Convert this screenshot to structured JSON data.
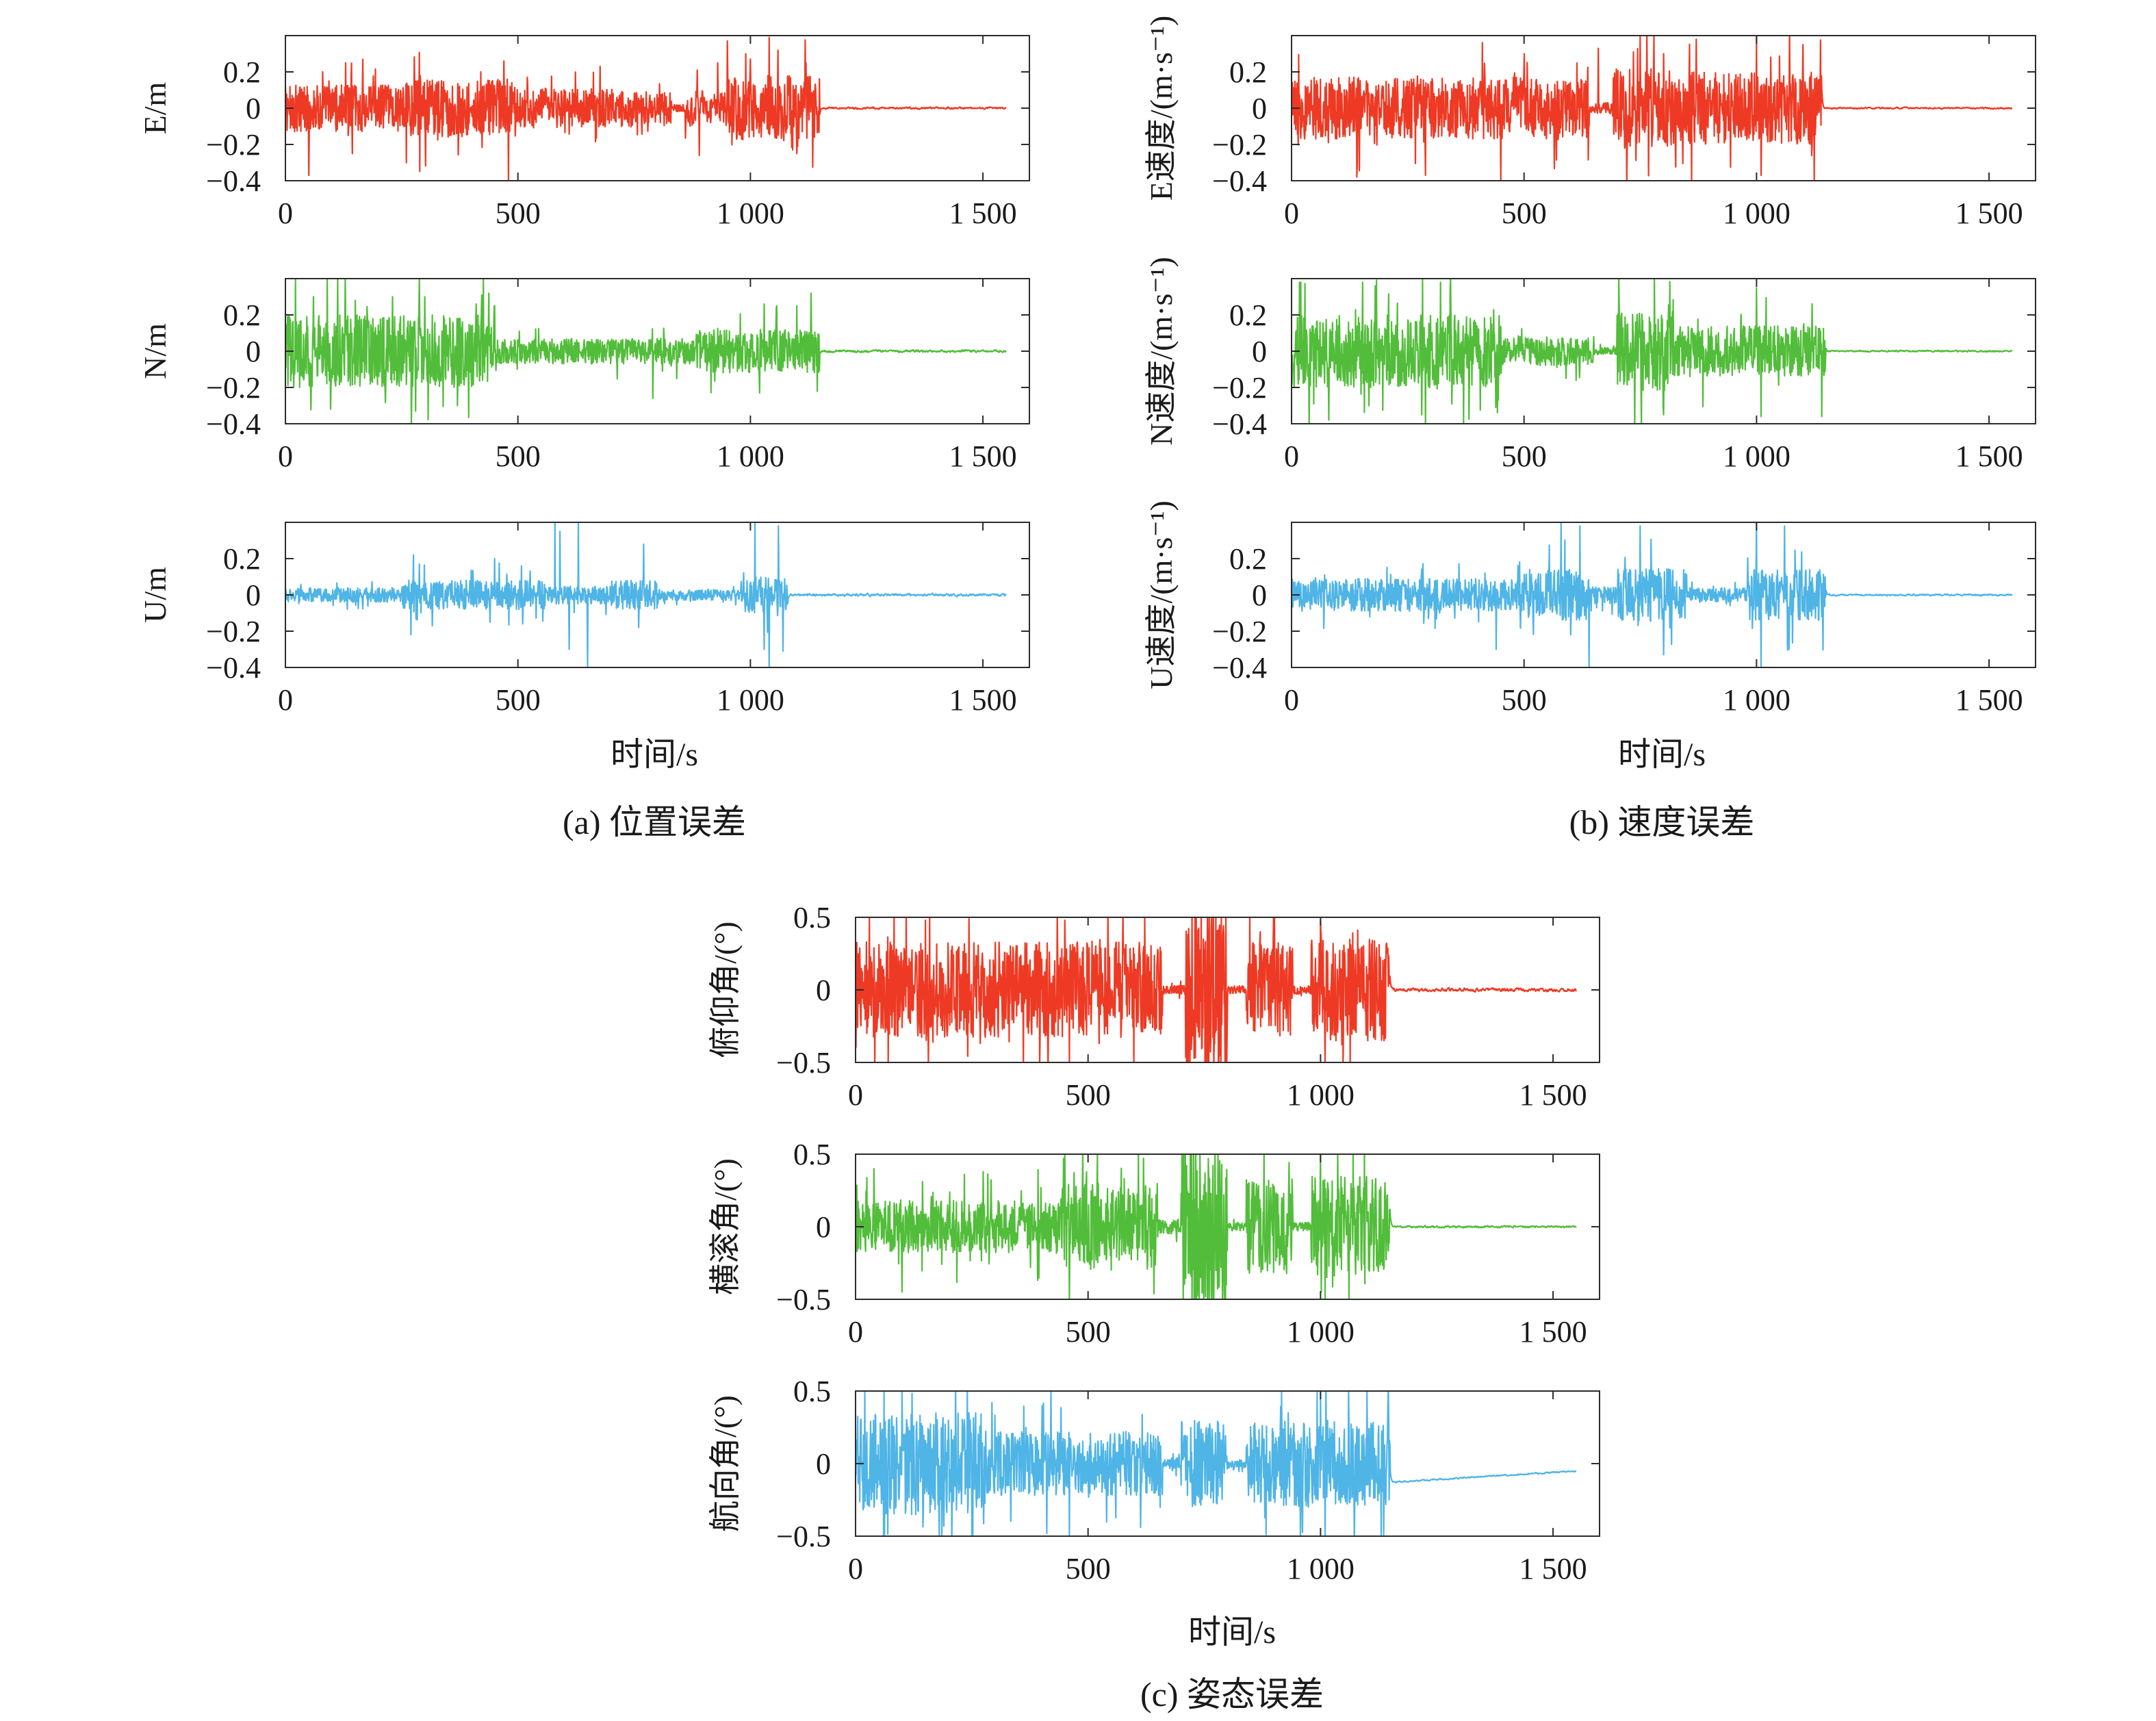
{
  "figure": {
    "colors": {
      "red": "#ee3a24",
      "green": "#52bd3a",
      "blue": "#4fb4e6",
      "axis": "#2b2b2b"
    },
    "captions": [
      "(a) 位置误差",
      "(b) 速度误差",
      "(c) 姿态误差"
    ],
    "xlabel": "时间/s"
  },
  "chart_data": [
    {
      "type": "line",
      "id": "pos-e",
      "ylabel": "E/m",
      "color": "red",
      "xlim": [
        0,
        1600
      ],
      "ylim": [
        -0.4,
        0.4
      ],
      "xticks": [
        0,
        500,
        1000,
        1500
      ],
      "xtick_labels": [
        "0",
        "500",
        "1 000",
        "1 500"
      ],
      "yticks": [
        0.2,
        0,
        -0.2,
        -0.4
      ],
      "ytick_labels": [
        "0.2",
        "0",
        "−0.2",
        "−0.4"
      ],
      "x_end": 1550,
      "segments": [
        [
          0,
          250,
          0.13
        ],
        [
          250,
          500,
          0.16
        ],
        [
          500,
          750,
          0.11
        ],
        [
          750,
          830,
          0.09
        ],
        [
          830,
          860,
          0.02
        ],
        [
          860,
          950,
          0.1
        ],
        [
          950,
          1150,
          0.18
        ],
        [
          1150,
          1550,
          0.005
        ]
      ],
      "spikes": [
        [
          50,
          -0.37
        ],
        [
          80,
          0.2
        ],
        [
          130,
          0.25
        ],
        [
          260,
          -0.3
        ],
        [
          290,
          0.18
        ],
        [
          420,
          0.2
        ],
        [
          470,
          0.26
        ],
        [
          480,
          -0.4
        ],
        [
          520,
          0.17
        ],
        [
          890,
          -0.26
        ],
        [
          930,
          0.25
        ],
        [
          990,
          0.3
        ],
        [
          1000,
          0.27
        ],
        [
          1040,
          0.39
        ],
        [
          1100,
          -0.25
        ],
        [
          1120,
          0.25
        ]
      ]
    },
    {
      "type": "line",
      "id": "pos-n",
      "ylabel": "N/m",
      "color": "green",
      "xlim": [
        0,
        1600
      ],
      "ylim": [
        -0.4,
        0.4
      ],
      "xticks": [
        0,
        500,
        1000,
        1500
      ],
      "xtick_labels": [
        "0",
        "500",
        "1 000",
        "1 500"
      ],
      "yticks": [
        0.2,
        0,
        -0.2,
        -0.4
      ],
      "ytick_labels": [
        "0.2",
        "0",
        "−0.2",
        "−0.4"
      ],
      "x_end": 1550,
      "segments": [
        [
          0,
          450,
          0.2
        ],
        [
          450,
          700,
          0.07
        ],
        [
          700,
          880,
          0.07
        ],
        [
          880,
          1150,
          0.12
        ],
        [
          1150,
          1550,
          0.006
        ]
      ],
      "spikes": [
        [
          60,
          0.3
        ],
        [
          150,
          0.28
        ],
        [
          230,
          0.3
        ],
        [
          280,
          -0.33
        ],
        [
          300,
          0.3
        ],
        [
          370,
          -0.3
        ],
        [
          410,
          0.26
        ],
        [
          450,
          0.25
        ],
        [
          790,
          -0.26
        ],
        [
          1020,
          -0.23
        ],
        [
          1030,
          0.26
        ],
        [
          1100,
          0.25
        ],
        [
          1130,
          0.32
        ]
      ]
    },
    {
      "type": "line",
      "id": "pos-u",
      "ylabel": "U/m",
      "color": "blue",
      "xlim": [
        0,
        1600
      ],
      "ylim": [
        -0.4,
        0.4
      ],
      "xticks": [
        0,
        500,
        1000,
        1500
      ],
      "xtick_labels": [
        "0",
        "500",
        "1 000",
        "1 500"
      ],
      "yticks": [
        0.2,
        0,
        -0.2,
        -0.4
      ],
      "ytick_labels": [
        "0.2",
        "0",
        "−0.2",
        "−0.4"
      ],
      "x_end": 1550,
      "segments": [
        [
          0,
          250,
          0.04
        ],
        [
          250,
          560,
          0.08
        ],
        [
          560,
          700,
          0.05
        ],
        [
          700,
          800,
          0.08
        ],
        [
          800,
          980,
          0.03
        ],
        [
          980,
          1080,
          0.1
        ],
        [
          1080,
          1550,
          0.006
        ]
      ],
      "spikes": [
        [
          270,
          -0.22
        ],
        [
          275,
          0.22
        ],
        [
          440,
          -0.15
        ],
        [
          450,
          0.2
        ],
        [
          510,
          -0.16
        ],
        [
          580,
          0.4
        ],
        [
          590,
          0.35
        ],
        [
          610,
          -0.3
        ],
        [
          630,
          0.4
        ],
        [
          650,
          -0.42
        ],
        [
          760,
          -0.18
        ],
        [
          770,
          0.28
        ],
        [
          1010,
          0.4
        ],
        [
          1030,
          -0.3
        ],
        [
          1040,
          -0.42
        ],
        [
          1060,
          0.38
        ],
        [
          1070,
          -0.31
        ]
      ]
    },
    {
      "type": "line",
      "id": "vel-e",
      "ylabel": "E速度/(m·s⁻¹)",
      "color": "red",
      "xlim": [
        0,
        1600
      ],
      "ylim": [
        -0.4,
        0.4
      ],
      "xticks": [
        0,
        500,
        1000,
        1500
      ],
      "xtick_labels": [
        "0",
        "500",
        "1 000",
        "1 500"
      ],
      "yticks": [
        0.2,
        0,
        -0.2,
        -0.4
      ],
      "ytick_labels": [
        "0.2",
        "0",
        "−0.2",
        "−0.4"
      ],
      "x_end": 1550,
      "segments": [
        [
          0,
          640,
          0.17
        ],
        [
          640,
          690,
          0.03
        ],
        [
          690,
          820,
          0.22
        ],
        [
          820,
          1140,
          0.2
        ],
        [
          1140,
          1550,
          0.004
        ]
      ],
      "spikes": [
        [
          140,
          -0.38
        ],
        [
          450,
          -0.42
        ],
        [
          500,
          0.3
        ],
        [
          660,
          0.33
        ],
        [
          750,
          0.4
        ],
        [
          800,
          0.3
        ],
        [
          860,
          -0.42
        ],
        [
          870,
          0.38
        ],
        [
          1000,
          0.4
        ],
        [
          1010,
          -0.37
        ],
        [
          1100,
          0.35
        ]
      ]
    },
    {
      "type": "line",
      "id": "vel-n",
      "ylabel": "N速度/(m·s⁻¹)",
      "color": "green",
      "xlim": [
        0,
        1600
      ],
      "ylim": [
        -0.4,
        0.4
      ],
      "xticks": [
        0,
        500,
        1000,
        1500
      ],
      "xtick_labels": [
        "0",
        "500",
        "1 000",
        "1 500"
      ],
      "yticks": [
        0.2,
        0,
        -0.2,
        -0.4
      ],
      "ytick_labels": [
        "0.2",
        "0",
        "−0.2",
        "−0.4"
      ],
      "x_end": 1550,
      "segments": [
        [
          0,
          450,
          0.2
        ],
        [
          450,
          650,
          0.08
        ],
        [
          650,
          700,
          0.02
        ],
        [
          700,
          820,
          0.22
        ],
        [
          820,
          1150,
          0.14
        ],
        [
          1150,
          1550,
          0.004
        ]
      ],
      "spikes": [
        [
          20,
          0.38
        ],
        [
          80,
          -0.38
        ],
        [
          180,
          0.36
        ],
        [
          280,
          -0.35
        ],
        [
          320,
          0.38
        ],
        [
          370,
          -0.4
        ],
        [
          780,
          0.4
        ],
        [
          800,
          -0.35
        ],
        [
          1000,
          0.35
        ],
        [
          1010,
          -0.36
        ],
        [
          1140,
          -0.36
        ]
      ]
    },
    {
      "type": "line",
      "id": "vel-u",
      "ylabel": "U速度/(m·s⁻¹)",
      "color": "blue",
      "xlim": [
        0,
        1600
      ],
      "ylim": [
        -0.4,
        0.4
      ],
      "xticks": [
        0,
        500,
        1000,
        1500
      ],
      "xtick_labels": [
        "0",
        "500",
        "1 000",
        "1 500"
      ],
      "yticks": [
        0.2,
        0,
        -0.2,
        -0.4
      ],
      "ytick_labels": [
        "0.2",
        "0",
        "−0.2",
        "−0.4"
      ],
      "x_end": 1550,
      "segments": [
        [
          0,
          500,
          0.09
        ],
        [
          500,
          640,
          0.14
        ],
        [
          640,
          700,
          0.05
        ],
        [
          700,
          850,
          0.15
        ],
        [
          850,
          980,
          0.04
        ],
        [
          980,
          1150,
          0.14
        ],
        [
          1150,
          1550,
          0.004
        ]
      ],
      "spikes": [
        [
          440,
          -0.3
        ],
        [
          580,
          0.4
        ],
        [
          600,
          -0.22
        ],
        [
          620,
          0.38
        ],
        [
          640,
          -0.42
        ],
        [
          750,
          0.38
        ],
        [
          800,
          -0.33
        ],
        [
          1000,
          0.4
        ],
        [
          1010,
          -0.42
        ],
        [
          1060,
          0.38
        ],
        [
          1070,
          -0.3
        ]
      ]
    },
    {
      "type": "line",
      "id": "att-pitch",
      "ylabel": "俯仰角/(°)",
      "color": "red",
      "xlim": [
        0,
        1600
      ],
      "ylim": [
        -0.5,
        0.5
      ],
      "xticks": [
        0,
        500,
        1000,
        1500
      ],
      "xtick_labels": [
        "0",
        "500",
        "1 000",
        "1 500"
      ],
      "yticks": [
        0.5,
        0,
        -0.5
      ],
      "ytick_labels": [
        "0.5",
        "0",
        "−0.5"
      ],
      "x_end": 1550,
      "segments": [
        [
          0,
          660,
          0.33
        ],
        [
          660,
          710,
          0.03
        ],
        [
          710,
          800,
          0.65
        ],
        [
          800,
          840,
          0.03
        ],
        [
          840,
          940,
          0.33
        ],
        [
          940,
          980,
          0.03
        ],
        [
          980,
          1150,
          0.35
        ],
        [
          1150,
          1550,
          0.01
        ]
      ],
      "spikes": [
        [
          30,
          0.5
        ],
        [
          70,
          -0.5
        ],
        [
          150,
          0.48
        ],
        [
          450,
          0.48
        ],
        [
          460,
          -0.5
        ],
        [
          730,
          0.5
        ],
        [
          760,
          -0.5
        ],
        [
          870,
          0.4
        ],
        [
          1000,
          0.48
        ],
        [
          1010,
          -0.5
        ]
      ]
    },
    {
      "type": "line",
      "id": "att-roll",
      "ylabel": "横滚角/(°)",
      "color": "green",
      "xlim": [
        0,
        1600
      ],
      "ylim": [
        -0.5,
        0.5
      ],
      "xticks": [
        0,
        500,
        1000,
        1500
      ],
      "xtick_labels": [
        "0",
        "500",
        "1 000",
        "1 500"
      ],
      "yticks": [
        0.5,
        0,
        -0.5
      ],
      "ytick_labels": [
        "0.5",
        "0",
        "−0.5"
      ],
      "x_end": 1550,
      "segments": [
        [
          0,
          430,
          0.18
        ],
        [
          430,
          650,
          0.3
        ],
        [
          650,
          700,
          0.05
        ],
        [
          700,
          800,
          0.65
        ],
        [
          800,
          840,
          0.03
        ],
        [
          840,
          940,
          0.33
        ],
        [
          940,
          980,
          0.03
        ],
        [
          980,
          1150,
          0.35
        ],
        [
          1150,
          1550,
          0.006
        ]
      ],
      "spikes": [
        [
          40,
          0.4
        ],
        [
          100,
          -0.45
        ],
        [
          450,
          0.5
        ],
        [
          460,
          -0.5
        ],
        [
          520,
          0.5
        ],
        [
          720,
          0.5
        ],
        [
          770,
          -0.5
        ],
        [
          1000,
          0.5
        ],
        [
          1010,
          -0.5
        ]
      ]
    },
    {
      "type": "line",
      "id": "att-yaw",
      "ylabel": "航向角/(°)",
      "color": "blue",
      "xlim": [
        0,
        1600
      ],
      "ylim": [
        -0.5,
        0.5
      ],
      "xticks": [
        0,
        500,
        1000,
        1500
      ],
      "xtick_labels": [
        "0",
        "500",
        "1 000",
        "1 500"
      ],
      "yticks": [
        0.5,
        0,
        -0.5
      ],
      "ytick_labels": [
        "0.5",
        "0",
        "−0.5"
      ],
      "x_end": 1550,
      "segments": [
        [
          0,
          280,
          0.35
        ],
        [
          280,
          660,
          0.22
        ],
        [
          660,
          700,
          0.04
        ],
        [
          700,
          800,
          0.3
        ],
        [
          800,
          840,
          0.03
        ],
        [
          840,
          940,
          0.3
        ],
        [
          940,
          1150,
          0.3
        ],
        [
          1150,
          1550,
          0.004
        ]
      ],
      "trend": [
        [
          1150,
          -0.13
        ],
        [
          1550,
          -0.05
        ]
      ],
      "spikes": [
        [
          20,
          0.5
        ],
        [
          60,
          -0.5
        ],
        [
          100,
          0.5
        ],
        [
          180,
          -0.5
        ],
        [
          240,
          0.5
        ],
        [
          250,
          -0.5
        ],
        [
          420,
          0.5
        ],
        [
          460,
          -0.5
        ],
        [
          1000,
          0.5
        ],
        [
          1010,
          -0.5
        ],
        [
          1100,
          0.5
        ],
        [
          1130,
          -0.5
        ]
      ]
    }
  ]
}
